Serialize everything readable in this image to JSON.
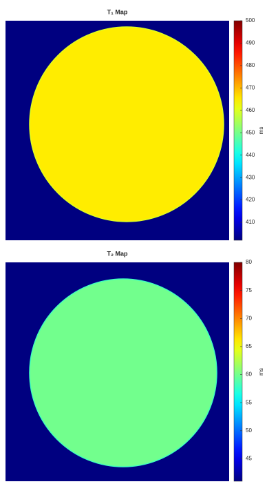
{
  "chart_data": [
    {
      "type": "heatmap",
      "title": "T₁ Map",
      "colormap": "jet",
      "colorbar_label": "ms",
      "clim": [
        402,
        500
      ],
      "cticks": [
        410,
        420,
        430,
        440,
        450,
        460,
        470,
        480,
        490,
        500
      ],
      "disk_value": 465
    },
    {
      "type": "heatmap",
      "title": "T₂ Map",
      "colormap": "jet",
      "colorbar_label": "ms",
      "clim": [
        41,
        80
      ],
      "cticks": [
        45,
        50,
        55,
        60,
        65,
        70,
        75,
        80
      ],
      "disk_value": 60
    }
  ]
}
